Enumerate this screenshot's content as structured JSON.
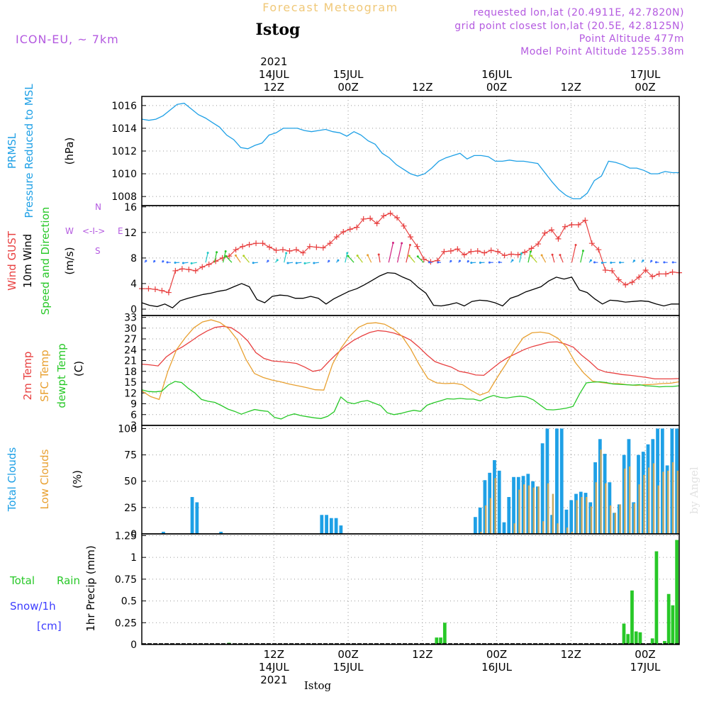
{
  "header": {
    "super_title": "Forecast Meteogram",
    "location": "Istog",
    "model": "ICON-EU, ~ 7km",
    "requested": "requested lon,lat (20.4911E, 42.7820N)",
    "gridpoint": "grid point closest lon,lat (20.5E, 42.8125N)",
    "point_alt": "Point Altitude 477m",
    "model_alt": "Model Point Altitude 1255.38m",
    "footer_location": "Istog",
    "watermark": "by Angel"
  },
  "colors": {
    "pressure": "#1ea0e6",
    "gust": "#e84040",
    "wind": "#000000",
    "temp2m": "#e84040",
    "sfc": "#e8a030",
    "dewpt": "#28c828",
    "total_cloud": "#1ea0e6",
    "low_cloud": "#c8a860",
    "rain": "#28c828",
    "snow": "#3c3cff",
    "header_purple": "#b45ae0",
    "header_orange": "#f0c878"
  },
  "time_axis": {
    "top_labels": [
      {
        "h": 12,
        "lines": [
          "2021",
          "14JUL",
          "12Z"
        ]
      },
      {
        "h": 24,
        "lines": [
          "15JUL",
          "00Z"
        ]
      },
      {
        "h": 36,
        "lines": [
          "12Z"
        ]
      },
      {
        "h": 48,
        "lines": [
          "16JUL",
          "00Z"
        ]
      },
      {
        "h": 60,
        "lines": [
          "12Z"
        ]
      },
      {
        "h": 72,
        "lines": [
          "17JUL",
          "00Z"
        ]
      }
    ],
    "bottom_labels": [
      {
        "h": 12,
        "lines": [
          "12Z",
          "14JUL",
          "2021"
        ]
      },
      {
        "h": 24,
        "lines": [
          "00Z",
          "15JUL"
        ]
      },
      {
        "h": 36,
        "lines": [
          "12Z"
        ]
      },
      {
        "h": 48,
        "lines": [
          "00Z",
          "16JUL"
        ]
      },
      {
        "h": 60,
        "lines": [
          "12Z"
        ]
      },
      {
        "h": 72,
        "lines": [
          "00Z",
          "17JUL"
        ]
      }
    ]
  },
  "chart_data": [
    {
      "type": "line",
      "panel": "pressure",
      "ylabels": [
        "PRMSL",
        "Pressure Reduced to MSL",
        "(hPa)"
      ],
      "ylim": [
        1007.2,
        1016.8
      ],
      "yticks": [
        1008,
        1010,
        1012,
        1014,
        1016
      ],
      "series": [
        {
          "values": [
            1014.8,
            1014.7,
            1014.8,
            1015.1,
            1015.6,
            1016.1,
            1016.2,
            1015.7,
            1015.2,
            1014.9,
            1014.5,
            1014.1,
            1013.4,
            1013.0,
            1012.3,
            1012.2,
            1012.5,
            1012.7,
            1013.4,
            1013.6,
            1014.0,
            1014.0,
            1014.0,
            1013.8,
            1013.7,
            1013.8,
            1013.9,
            1013.7,
            1013.6,
            1013.3,
            1013.7,
            1013.4,
            1012.9,
            1012.6,
            1011.8,
            1011.4,
            1010.8,
            1010.4,
            1010.0,
            1009.8,
            1010.0,
            1010.5,
            1011.1,
            1011.4,
            1011.6,
            1011.8,
            1011.3,
            1011.6,
            1011.6,
            1011.5,
            1011.1,
            1011.1,
            1011.2,
            1011.1,
            1011.1,
            1011.0,
            1010.9,
            1010.1,
            1009.3,
            1008.6,
            1008.1,
            1007.8,
            1007.8,
            1008.3,
            1009.4,
            1009.8,
            1011.1,
            1011.0,
            1010.8,
            1010.5,
            1010.5,
            1010.3,
            1010.0,
            1010.0,
            1010.2,
            1010.1,
            1010.1
          ]
        }
      ]
    },
    {
      "type": "line",
      "panel": "wind",
      "ylabels": [
        "Wind GUST",
        "10m Wind",
        "Speed and Direction",
        "(m/s)"
      ],
      "compass": {
        "n": "N",
        "e": "E",
        "s": "S",
        "w": "W",
        "arrows": "<-I->"
      },
      "ylim": [
        -1,
        16.2
      ],
      "yticks": [
        0,
        4,
        8,
        12,
        16
      ],
      "series": [
        {
          "name": "gust",
          "values": [
            3.2,
            3.2,
            3.1,
            2.9,
            2.6,
            6.0,
            6.3,
            6.2,
            6.0,
            6.6,
            7.0,
            7.5,
            8.0,
            8.3,
            9.3,
            9.8,
            10.1,
            10.3,
            10.3,
            9.7,
            9.2,
            9.3,
            9.1,
            9.3,
            8.8,
            9.8,
            9.7,
            9.6,
            10.3,
            11.3,
            12.1,
            12.5,
            12.8,
            14.1,
            14.2,
            13.4,
            14.6,
            15.0,
            14.3,
            13.0,
            11.3,
            9.8,
            7.8,
            7.4,
            7.6,
            9.0,
            9.1,
            9.4,
            8.5,
            9.0,
            9.1,
            8.8,
            9.2,
            9.0,
            8.4,
            8.6,
            8.5,
            8.9,
            9.5,
            10.2,
            11.9,
            12.4,
            11.0,
            12.9,
            13.2,
            13.2,
            13.9,
            10.3,
            9.3,
            6.1,
            6.0,
            4.6,
            3.8,
            4.2,
            5.0,
            6.1,
            5.1,
            5.5,
            5.5,
            5.8,
            5.7
          ]
        },
        {
          "name": "wind",
          "values": [
            1.0,
            0.6,
            0.4,
            0.8,
            0.2,
            1.3,
            1.7,
            2.0,
            2.3,
            2.5,
            2.8,
            3.0,
            3.5,
            4.0,
            3.5,
            1.5,
            1.0,
            2.0,
            2.2,
            2.1,
            1.7,
            1.7,
            2.0,
            1.7,
            0.8,
            1.6,
            2.2,
            2.8,
            3.2,
            3.8,
            4.5,
            5.2,
            5.7,
            5.6,
            5.0,
            4.5,
            3.4,
            2.5,
            0.6,
            0.5,
            0.7,
            1.0,
            0.5,
            1.2,
            1.4,
            1.3,
            1.0,
            0.5,
            1.7,
            2.1,
            2.7,
            3.1,
            3.5,
            4.4,
            5.0,
            4.7,
            5.0,
            3.0,
            2.6,
            1.6,
            0.8,
            1.4,
            1.3,
            1.1,
            1.2,
            1.3,
            1.2,
            0.8,
            0.5,
            0.8,
            0.8
          ]
        }
      ]
    },
    {
      "type": "line",
      "panel": "temperature",
      "ylabels": [
        "2m Temp",
        "SFC Temp",
        "dewpt Temp",
        "(C)"
      ],
      "ylim": [
        3,
        33.5
      ],
      "yticks": [
        3,
        6,
        9,
        12,
        15,
        18,
        21,
        24,
        27,
        30,
        33
      ],
      "series": [
        {
          "name": "2m Temp",
          "values": [
            20.0,
            19.8,
            19.5,
            22.0,
            23.6,
            24.8,
            26.3,
            27.9,
            29.2,
            30.2,
            30.5,
            30.1,
            28.6,
            26.5,
            23.2,
            21.6,
            20.9,
            20.7,
            20.5,
            20.2,
            19.2,
            18.0,
            18.4,
            20.8,
            23.0,
            25.0,
            26.6,
            27.8,
            28.8,
            29.3,
            29.1,
            28.6,
            27.8,
            26.7,
            24.8,
            22.6,
            20.7,
            19.9,
            19.2,
            18.0,
            17.6,
            17.0,
            16.9,
            18.7,
            20.5,
            21.9,
            23.0,
            24.1,
            24.9,
            25.5,
            26.1,
            26.2,
            25.6,
            24.7,
            22.5,
            20.7,
            18.6,
            17.8,
            17.5,
            17.1,
            16.9,
            16.6,
            16.3,
            15.9,
            15.9,
            15.9,
            16.0
          ]
        },
        {
          "name": "SFC Temp",
          "values": [
            12.6,
            11.0,
            10.2,
            18.0,
            24.0,
            27.3,
            30.1,
            31.7,
            32.3,
            31.6,
            29.9,
            26.8,
            21.4,
            17.4,
            16.3,
            15.6,
            15.1,
            14.5,
            14.0,
            13.5,
            12.9,
            12.8,
            20.0,
            24.5,
            27.8,
            30.2,
            31.3,
            31.5,
            31.1,
            29.8,
            27.8,
            24.3,
            19.9,
            16.0,
            14.8,
            14.6,
            14.7,
            14.3,
            12.7,
            11.4,
            12.3,
            16.3,
            20.0,
            23.9,
            27.3,
            28.7,
            28.9,
            28.5,
            27.2,
            24.7,
            20.5,
            17.5,
            15.3,
            14.9,
            14.6,
            14.6,
            14.3,
            14.1,
            14.3,
            14.4,
            14.6,
            14.7,
            15.1
          ]
        },
        {
          "name": "dewpt Temp",
          "values": [
            12.9,
            12.4,
            12.3,
            12.5,
            14.2,
            15.2,
            14.9,
            13.3,
            12.0,
            10.2,
            9.7,
            9.4,
            8.5,
            7.5,
            6.9,
            6.1,
            6.8,
            7.4,
            7.1,
            6.9,
            5.2,
            4.8,
            5.7,
            6.2,
            5.7,
            5.4,
            5.1,
            4.9,
            5.5,
            6.8,
            10.9,
            9.4,
            9.0,
            9.6,
            9.9,
            9.2,
            8.5,
            6.5,
            6.0,
            6.3,
            6.8,
            7.2,
            6.9,
            8.6,
            9.3,
            9.8,
            10.4,
            10.3,
            10.5,
            10.3,
            10.3,
            9.8,
            10.7,
            11.3,
            10.8,
            10.6,
            10.9,
            11.1,
            10.9,
            10.1,
            8.7,
            7.4,
            7.3,
            7.5,
            7.8,
            8.3,
            11.8,
            14.8,
            15.0,
            15.1,
            14.9,
            14.5,
            14.4,
            14.3,
            14.2,
            14.3,
            14.0,
            13.9,
            13.7,
            13.8,
            13.8,
            14.0
          ]
        }
      ]
    },
    {
      "type": "bar",
      "panel": "clouds",
      "ylabels": [
        "Total Clouds",
        "Low Clouds",
        "(%)"
      ],
      "ylim": [
        0,
        103
      ],
      "yticks": [
        0,
        25,
        50,
        75,
        100
      ],
      "series": [
        {
          "name": "Total Clouds",
          "values": [
            0,
            0,
            0,
            0,
            2,
            0,
            0,
            0,
            0,
            0,
            35,
            30,
            0,
            0,
            0,
            0,
            2,
            0,
            0,
            0,
            0,
            0,
            0,
            0,
            0,
            0,
            0,
            0,
            0,
            0,
            0,
            0,
            0,
            0,
            0,
            0,
            0,
            18,
            18,
            15,
            15,
            8,
            0,
            0,
            0,
            0,
            0,
            0,
            0,
            0,
            0,
            0,
            0,
            0,
            0,
            0,
            0,
            0,
            0,
            0,
            0,
            0,
            0,
            0,
            0,
            0,
            0,
            0,
            0,
            16,
            25,
            51,
            58,
            70,
            60,
            11,
            35,
            54,
            54,
            55,
            57,
            50,
            45,
            86,
            100,
            18,
            100,
            100,
            23,
            32,
            38,
            40,
            39,
            30,
            68,
            90,
            76,
            49,
            20,
            28,
            75,
            90,
            30,
            75,
            78,
            85,
            90,
            100,
            100,
            65,
            100,
            100
          ]
        },
        {
          "name": "Low Clouds",
          "values": [
            0,
            0,
            0,
            0,
            0,
            0,
            0,
            0,
            0,
            0,
            0,
            0,
            0,
            0,
            0,
            0,
            0,
            0,
            0,
            0,
            0,
            0,
            0,
            0,
            0,
            0,
            0,
            0,
            0,
            0,
            0,
            0,
            0,
            0,
            0,
            0,
            0,
            0,
            0,
            0,
            0,
            0,
            0,
            0,
            0,
            0,
            0,
            0,
            0,
            0,
            0,
            0,
            0,
            0,
            0,
            0,
            0,
            0,
            0,
            0,
            0,
            0,
            0,
            0,
            0,
            0,
            0,
            0,
            0,
            0,
            2,
            27,
            34,
            53,
            0,
            0,
            0,
            10,
            42,
            47,
            46,
            44,
            45,
            12,
            48,
            38,
            10,
            0,
            6,
            2,
            32,
            35,
            35,
            26,
            49,
            80,
            48,
            27,
            20,
            28,
            62,
            64,
            29,
            47,
            56,
            63,
            67,
            46,
            59,
            60,
            68,
            60
          ]
        }
      ]
    },
    {
      "type": "bar",
      "panel": "precip",
      "ylabels": [
        "1hr Precip (mm)"
      ],
      "legend": [
        {
          "text": "Total",
          "color": "rain"
        },
        {
          "text": "Rain",
          "color": "rain"
        },
        {
          "text": "Snow/1h",
          "color": "snow"
        },
        {
          "text": "[cm]",
          "color": "snow"
        }
      ],
      "ylim": [
        0,
        1.27
      ],
      "yticks": [
        0,
        0.25,
        0.5,
        0.75,
        1,
        1.25
      ],
      "ytick_labels": [
        "0",
        "0.25",
        "0.5",
        "0.75",
        "1",
        "1.25"
      ],
      "series": [
        {
          "name": "1hr Precip",
          "values": [
            0,
            0,
            0,
            0,
            0,
            0,
            0,
            0,
            0,
            0,
            0,
            0,
            0,
            0,
            0,
            0,
            0,
            0,
            0,
            0,
            0,
            0.02,
            0,
            0,
            0,
            0,
            0,
            0,
            0,
            0,
            0,
            0,
            0,
            0,
            0,
            0,
            0,
            0,
            0,
            0,
            0,
            0,
            0,
            0,
            0,
            0,
            0,
            0,
            0,
            0,
            0,
            0,
            0,
            0,
            0,
            0,
            0,
            0,
            0,
            0,
            0,
            0,
            0,
            0,
            0,
            0,
            0,
            0,
            0,
            0,
            0,
            0,
            0.08,
            0.08,
            0.25,
            0,
            0,
            0,
            0,
            0,
            0,
            0,
            0,
            0,
            0,
            0,
            0,
            0,
            0,
            0,
            0,
            0,
            0,
            0,
            0,
            0,
            0,
            0,
            0,
            0,
            0,
            0,
            0,
            0,
            0,
            0,
            0,
            0,
            0,
            0,
            0,
            0,
            0,
            0,
            0,
            0,
            0,
            0,
            0.24,
            0.12,
            0.62,
            0.15,
            0.14,
            0,
            0,
            0.07,
            1.07,
            0,
            0.04,
            0.58,
            0.45,
            1.2
          ]
        }
      ]
    }
  ]
}
